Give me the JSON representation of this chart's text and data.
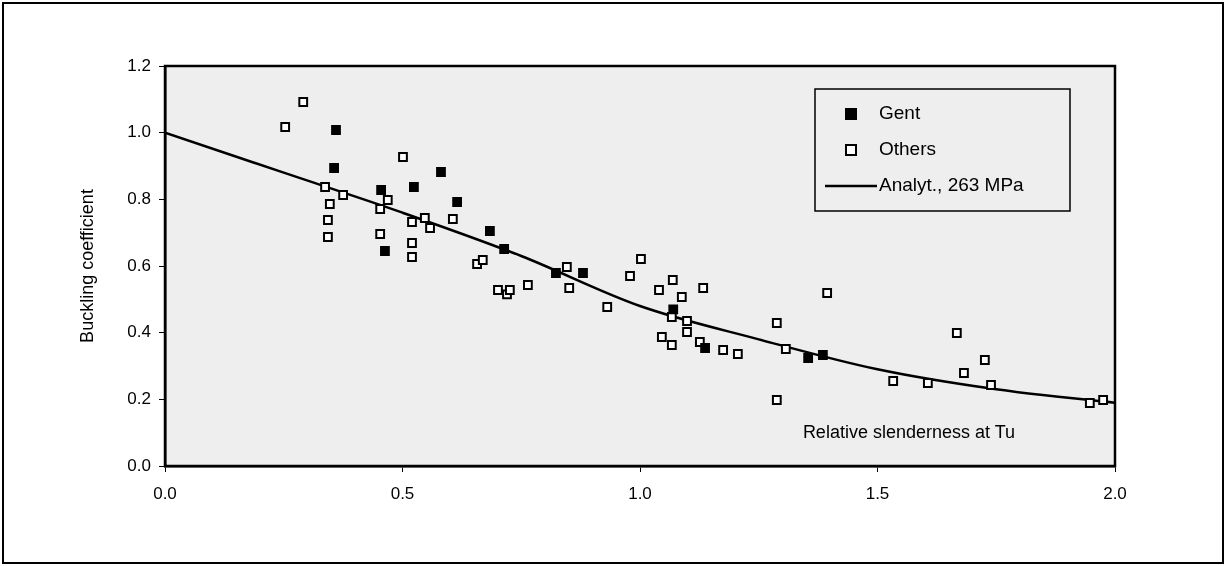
{
  "chart_data": {
    "type": "scatter",
    "xlabel": "Relative slenderness at Tu",
    "ylabel": "Buckling coefficient",
    "xlim": [
      0,
      2
    ],
    "xticks": [
      {
        "value": 0,
        "label": "0.0"
      },
      0.5,
      {
        "value": 1,
        "label": "1.0"
      },
      1.5,
      {
        "value": 2,
        "label": "2.0"
      }
    ],
    "ylim": [
      0,
      1.2
    ],
    "yticks": [
      {
        "value": 0,
        "label": "0.0"
      },
      0.2,
      0.4,
      0.6,
      0.8,
      {
        "value": 1,
        "label": "1.0"
      },
      1.2
    ],
    "grid": false,
    "legend": "top right",
    "marker": "square",
    "series": [
      {
        "name": "Gent",
        "type": "scatter",
        "color": "#000000",
        "x": [
          0.356,
          0.36,
          0.455,
          0.463,
          0.524,
          0.581,
          0.615,
          0.684,
          0.714,
          0.823,
          0.88,
          1.07,
          1.137,
          1.354,
          1.385
        ],
        "values": [
          0.894,
          1.008,
          0.828,
          0.645,
          0.837,
          0.882,
          0.792,
          0.705,
          0.651,
          0.579,
          0.579,
          0.47,
          0.354,
          0.324,
          0.333
        ]
      },
      {
        "name": "Others",
        "type": "scatter",
        "color": "#ffffff",
        "x": [
          0.253,
          0.291,
          0.337,
          0.347,
          0.343,
          0.343,
          0.375,
          0.453,
          0.469,
          0.501,
          0.453,
          0.52,
          0.52,
          0.52,
          0.547,
          0.558,
          0.606,
          0.657,
          0.669,
          0.701,
          0.72,
          0.726,
          0.764,
          0.846,
          0.851,
          0.931,
          0.979,
          1.002,
          1.04,
          1.069,
          1.088,
          1.133,
          1.067,
          1.099,
          1.046,
          1.067,
          1.099,
          1.126,
          1.175,
          1.206,
          1.288,
          1.307,
          1.288,
          1.394,
          1.533,
          1.606,
          1.667,
          1.682,
          1.726,
          1.739,
          1.947,
          1.975
        ],
        "values": [
          1.017,
          1.092,
          0.837,
          0.786,
          0.738,
          0.687,
          0.813,
          0.771,
          0.798,
          0.927,
          0.696,
          0.732,
          0.669,
          0.627,
          0.744,
          0.714,
          0.741,
          0.606,
          0.618,
          0.528,
          0.515,
          0.528,
          0.543,
          0.597,
          0.534,
          0.477,
          0.57,
          0.621,
          0.528,
          0.558,
          0.507,
          0.534,
          0.447,
          0.435,
          0.387,
          0.363,
          0.402,
          0.372,
          0.348,
          0.336,
          0.429,
          0.351,
          0.198,
          0.519,
          0.255,
          0.249,
          0.399,
          0.279,
          0.318,
          0.243,
          0.189,
          0.198
        ]
      },
      {
        "name": "Analyt., 263 MPa",
        "type": "line",
        "color": "#000000",
        "marker": "none",
        "line_style": "solid",
        "x": [
          0,
          0.25,
          0.5,
          0.75,
          1,
          1.25,
          1.5,
          1.75,
          2
        ],
        "values": [
          1,
          0.88,
          0.76,
          0.63,
          0.48,
          0.38,
          0.29,
          0.23,
          0.19
        ]
      }
    ]
  }
}
